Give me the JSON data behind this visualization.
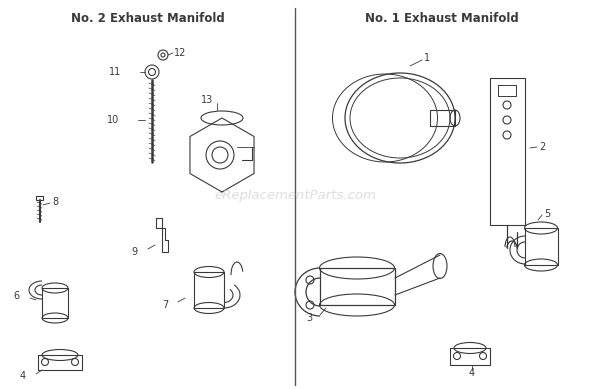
{
  "title_left": "No. 2 Exhaust Manifold",
  "title_right": "No. 1 Exhaust Manifold",
  "bg_color": "#ffffff",
  "text_color": "#3a3a3a",
  "line_color": "#3a3a3a",
  "watermark": "eReplacementParts.com",
  "watermark_color": "#c8c8c8",
  "figsize": [
    5.9,
    3.89
  ],
  "dpi": 100
}
